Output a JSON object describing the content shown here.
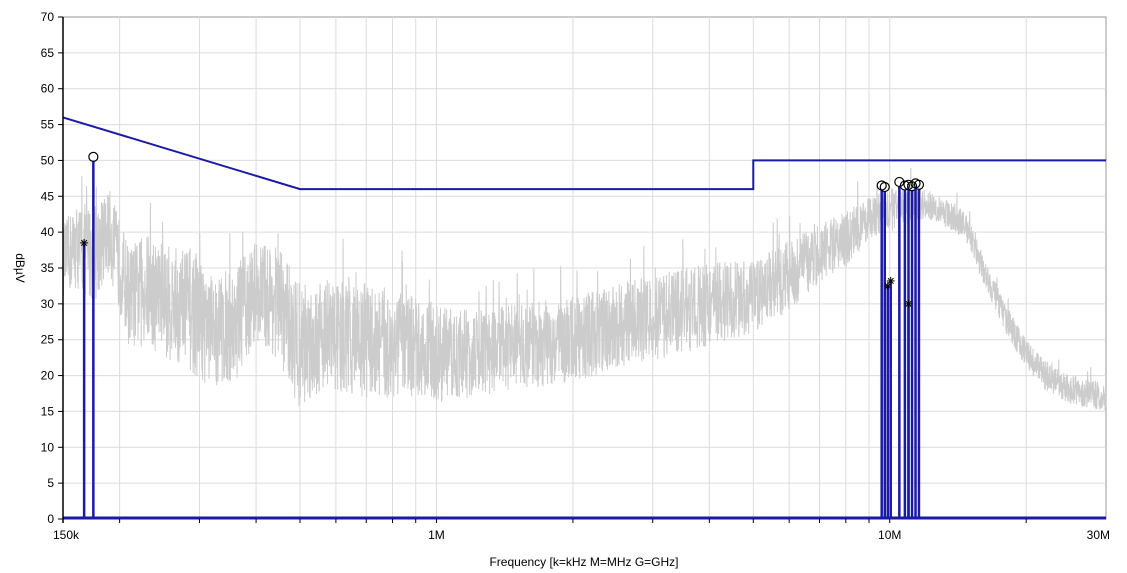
{
  "chart_data": {
    "type": "line",
    "xlabel": "Frequency [k=kHz M=MHz G=GHz]",
    "ylabel": "dBµV",
    "x_scale": "log",
    "xlim": [
      150000,
      30000000
    ],
    "ylim": [
      0,
      70
    ],
    "y_ticks": [
      0,
      5,
      10,
      15,
      20,
      25,
      30,
      35,
      40,
      45,
      50,
      55,
      60,
      65,
      70
    ],
    "y_tick_labels": [
      "0",
      "5",
      "10",
      "15",
      "20",
      "25",
      "30",
      "35",
      "40",
      "45",
      "50",
      "55",
      "60",
      "65",
      "70"
    ],
    "x_tick_labels": [
      {
        "value": 150000,
        "label": "150k"
      },
      {
        "value": 1000000,
        "label": "1M"
      },
      {
        "value": 10000000,
        "label": "10M"
      },
      {
        "value": 30000000,
        "label": "30M"
      }
    ],
    "grid": true,
    "colors": {
      "limit": "#1a1aa6",
      "scan": "#cccccc",
      "marker": "#000000"
    },
    "limit_line": {
      "x": [
        150000,
        500000,
        500000,
        5000000,
        5000000,
        30000000
      ],
      "y": [
        56,
        46,
        46,
        46,
        50,
        50
      ]
    },
    "scan_envelope": {
      "x": [
        150000,
        160000,
        175000,
        190000,
        210000,
        230000,
        260000,
        290000,
        320000,
        360000,
        400000,
        450000,
        500000,
        560000,
        630000,
        700000,
        800000,
        900000,
        1000000,
        1200000,
        1500000,
        2000000,
        2500000,
        3000000,
        3500000,
        4000000,
        5000000,
        6000000,
        7000000,
        8000000,
        9000000,
        10000000,
        11000000,
        12000000,
        13000000,
        14000000,
        15000000,
        16000000,
        18000000,
        20000000,
        22000000,
        25000000,
        30000000
      ],
      "y_mid": [
        36,
        38,
        37,
        40,
        31,
        32,
        30,
        29,
        26,
        27,
        32,
        30,
        24,
        26,
        25,
        25,
        24,
        24,
        23,
        23,
        24,
        25,
        27,
        28,
        29,
        30,
        31,
        34,
        37,
        39,
        42,
        43,
        44,
        44,
        43,
        42,
        40,
        35,
        28,
        23,
        20,
        18,
        17
      ],
      "y_amp": [
        5,
        6,
        7,
        6,
        7,
        8,
        8,
        9,
        8,
        8,
        7,
        8,
        9,
        8,
        8,
        8,
        8,
        7,
        7,
        6,
        6,
        6,
        6,
        6,
        6,
        6,
        5,
        5,
        4,
        4,
        3,
        3,
        3,
        2,
        2,
        2,
        2,
        2,
        2,
        2,
        2,
        2,
        2
      ]
    },
    "peaks": [
      {
        "x": 175000,
        "y": 50.5
      },
      {
        "x": 9600000,
        "y": 46.5
      },
      {
        "x": 9750000,
        "y": 46.3
      },
      {
        "x": 10500000,
        "y": 47
      },
      {
        "x": 10800000,
        "y": 46.5
      },
      {
        "x": 11000000,
        "y": 46.6
      },
      {
        "x": 11200000,
        "y": 46.4
      },
      {
        "x": 11400000,
        "y": 46.8
      },
      {
        "x": 11600000,
        "y": 46.6
      }
    ],
    "averages": [
      {
        "x": 167000,
        "y": 38.5
      },
      {
        "x": 9900000,
        "y": 32.5
      },
      {
        "x": 10050000,
        "y": 33.2
      },
      {
        "x": 11000000,
        "y": 30
      }
    ]
  }
}
